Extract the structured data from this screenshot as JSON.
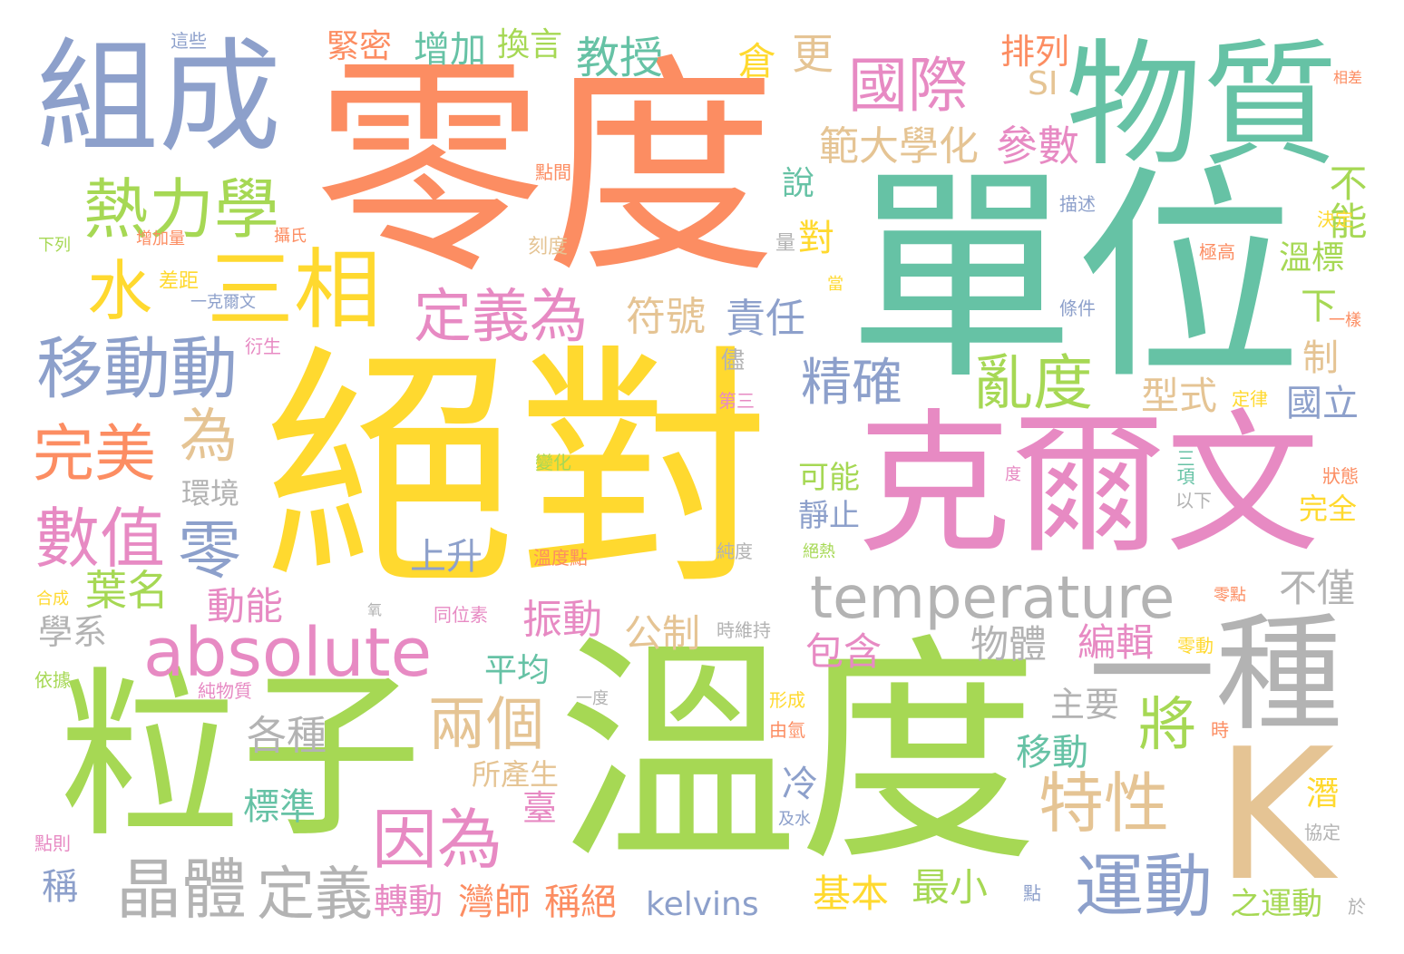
{
  "palette": {
    "orange": "#fc8d62",
    "green": "#66c2a5",
    "blue": "#8da0cb",
    "pink": "#e78ac3",
    "lime": "#a6d854",
    "yellow": "#ffd92f",
    "tan": "#e5c494",
    "gray": "#b3b3b3"
  },
  "words": [
    {
      "text": "零度",
      "color": "orange"
    },
    {
      "text": "單位",
      "color": "green"
    },
    {
      "text": "絕對",
      "color": "yellow"
    },
    {
      "text": "溫度",
      "color": "lime"
    },
    {
      "text": "克爾文",
      "color": "pink"
    },
    {
      "text": "組成",
      "color": "blue"
    },
    {
      "text": "物質",
      "color": "green"
    },
    {
      "text": "粒子",
      "color": "lime"
    },
    {
      "text": "一種",
      "color": "gray"
    },
    {
      "text": "K",
      "color": "tan"
    },
    {
      "text": "三相",
      "color": "yellow"
    },
    {
      "text": "水",
      "color": "yellow"
    },
    {
      "text": "熱力學",
      "color": "lime"
    },
    {
      "text": "移動動",
      "color": "blue"
    },
    {
      "text": "absolute",
      "color": "pink"
    },
    {
      "text": "temperature",
      "color": "gray"
    },
    {
      "text": "國際",
      "color": "pink"
    },
    {
      "text": "數值",
      "color": "pink"
    },
    {
      "text": "零",
      "color": "blue"
    },
    {
      "text": "完美",
      "color": "orange"
    },
    {
      "text": "為",
      "color": "tan"
    },
    {
      "text": "定義為",
      "color": "pink"
    },
    {
      "text": "因為",
      "color": "pink"
    },
    {
      "text": "兩個",
      "color": "tan"
    },
    {
      "text": "晶體",
      "color": "gray"
    },
    {
      "text": "定義",
      "color": "gray"
    },
    {
      "text": "亂度",
      "color": "lime"
    },
    {
      "text": "精確",
      "color": "blue"
    },
    {
      "text": "特性",
      "color": "tan"
    },
    {
      "text": "運動",
      "color": "blue"
    },
    {
      "text": "將",
      "color": "lime"
    },
    {
      "text": "葉名",
      "color": "lime"
    },
    {
      "text": "範大學化",
      "color": "tan"
    },
    {
      "text": "參數",
      "color": "pink"
    },
    {
      "text": "教授",
      "color": "green"
    },
    {
      "text": "增加",
      "color": "green"
    },
    {
      "text": "換言",
      "color": "lime"
    },
    {
      "text": "緊密",
      "color": "orange"
    },
    {
      "text": "排列",
      "color": "orange"
    },
    {
      "text": "SI",
      "color": "tan"
    },
    {
      "text": "倉",
      "color": "yellow"
    },
    {
      "text": "更",
      "color": "tan"
    },
    {
      "text": "符號",
      "color": "tan"
    },
    {
      "text": "責任",
      "color": "blue"
    },
    {
      "text": "型式",
      "color": "tan"
    },
    {
      "text": "國立",
      "color": "blue"
    },
    {
      "text": "不能",
      "color": "lime"
    },
    {
      "text": "溫標",
      "color": "lime"
    },
    {
      "text": "動能",
      "color": "pink"
    },
    {
      "text": "振動",
      "color": "pink"
    },
    {
      "text": "公制",
      "color": "tan"
    },
    {
      "text": "包含",
      "color": "pink"
    },
    {
      "text": "物體",
      "color": "gray"
    },
    {
      "text": "編輯",
      "color": "pink"
    },
    {
      "text": "不僅",
      "color": "gray"
    },
    {
      "text": "學系",
      "color": "gray"
    },
    {
      "text": "各種",
      "color": "gray"
    },
    {
      "text": "標準",
      "color": "green"
    },
    {
      "text": "轉動",
      "color": "pink"
    },
    {
      "text": "灣師",
      "color": "orange"
    },
    {
      "text": "稱絕",
      "color": "orange"
    },
    {
      "text": "kelvins",
      "color": "blue"
    },
    {
      "text": "基本",
      "color": "yellow"
    },
    {
      "text": "最小",
      "color": "lime"
    },
    {
      "text": "之運動",
      "color": "lime"
    },
    {
      "text": "移動",
      "color": "green"
    },
    {
      "text": "主要",
      "color": "gray"
    },
    {
      "text": "平均",
      "color": "green"
    },
    {
      "text": "上升",
      "color": "blue"
    },
    {
      "text": "環境",
      "color": "gray"
    },
    {
      "text": "稱",
      "color": "blue"
    },
    {
      "text": "可能",
      "color": "lime"
    },
    {
      "text": "靜止",
      "color": "blue"
    },
    {
      "text": "完全",
      "color": "yellow"
    },
    {
      "text": "對",
      "color": "yellow"
    },
    {
      "text": "說",
      "color": "green"
    },
    {
      "text": "下",
      "color": "lime"
    },
    {
      "text": "制",
      "color": "tan"
    },
    {
      "text": "冷",
      "color": "blue"
    },
    {
      "text": "臺",
      "color": "pink"
    },
    {
      "text": "潛",
      "color": "yellow"
    },
    {
      "text": "所產生",
      "color": "tan"
    },
    {
      "text": "這些",
      "color": "blue"
    },
    {
      "text": "相差",
      "color": "orange"
    },
    {
      "text": "點間",
      "color": "orange"
    },
    {
      "text": "描述",
      "color": "blue"
    },
    {
      "text": "決定",
      "color": "yellow"
    },
    {
      "text": "極高",
      "color": "orange"
    },
    {
      "text": "下列",
      "color": "lime"
    },
    {
      "text": "增加量",
      "color": "orange"
    },
    {
      "text": "攝氏",
      "color": "orange"
    },
    {
      "text": "刻度",
      "color": "tan"
    },
    {
      "text": "量",
      "color": "gray"
    },
    {
      "text": "差距",
      "color": "yellow"
    },
    {
      "text": "一克爾文",
      "color": "blue"
    },
    {
      "text": "當",
      "color": "yellow"
    },
    {
      "text": "條件",
      "color": "blue"
    },
    {
      "text": "一樣",
      "color": "orange"
    },
    {
      "text": "衍生",
      "color": "pink"
    },
    {
      "text": "儘",
      "color": "gray"
    },
    {
      "text": "第三",
      "color": "pink"
    },
    {
      "text": "定律",
      "color": "yellow"
    },
    {
      "text": "變化",
      "color": "lime"
    },
    {
      "text": "度",
      "color": "pink"
    },
    {
      "text": "三項",
      "color": "green"
    },
    {
      "text": "狀態",
      "color": "orange"
    },
    {
      "text": "以下",
      "color": "gray"
    },
    {
      "text": "純度",
      "color": "gray"
    },
    {
      "text": "溫度點",
      "color": "orange"
    },
    {
      "text": "絕熱",
      "color": "lime"
    },
    {
      "text": "零點",
      "color": "orange"
    },
    {
      "text": "合成",
      "color": "yellow"
    },
    {
      "text": "氧",
      "color": "gray"
    },
    {
      "text": "同位素",
      "color": "pink"
    },
    {
      "text": "時維持",
      "color": "gray"
    },
    {
      "text": "零動",
      "color": "yellow"
    },
    {
      "text": "依據",
      "color": "lime"
    },
    {
      "text": "純物質",
      "color": "pink"
    },
    {
      "text": "一度",
      "color": "gray"
    },
    {
      "text": "形成",
      "color": "yellow"
    },
    {
      "text": "由氫",
      "color": "orange"
    },
    {
      "text": "時",
      "color": "orange"
    },
    {
      "text": "協定",
      "color": "gray"
    },
    {
      "text": "點則",
      "color": "pink"
    },
    {
      "text": "及水",
      "color": "blue"
    },
    {
      "text": "點",
      "color": "blue"
    },
    {
      "text": "於",
      "color": "gray"
    }
  ]
}
